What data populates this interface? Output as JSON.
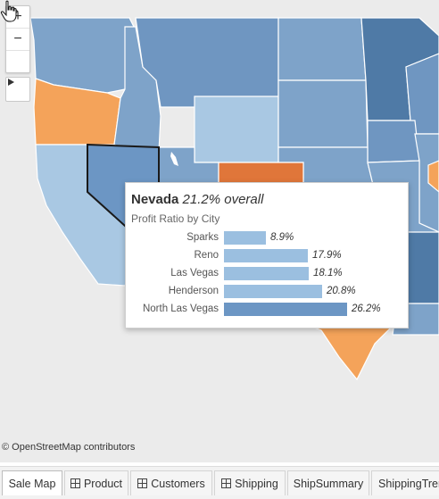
{
  "map": {
    "controls": {
      "zoom_in": "+",
      "zoom_out": "−",
      "pin": "pin-icon",
      "expand": "play-triangle-icon"
    },
    "attribution": "© OpenStreetMap contributors"
  },
  "colors": {
    "background": "#ebebeb",
    "profit_low": "#a9c8e3",
    "profit_mid": "#7ea3c9",
    "profit_high": "#4f7aa6",
    "loss_light": "#f4a35a",
    "loss_dark": "#e0763a",
    "tooltip_bar_light": "#9bbfe0",
    "tooltip_bar_dark": "#6c96c4"
  },
  "tooltip": {
    "state": "Nevada",
    "overall": "21.2% overall",
    "subtitle": "Profit Ratio by City",
    "rows": [
      {
        "city": "Sparks",
        "value_text": "8.9%",
        "value": 8.9
      },
      {
        "city": "Reno",
        "value_text": "17.9%",
        "value": 17.9
      },
      {
        "city": "Las Vegas",
        "value_text": "18.1%",
        "value": 18.1
      },
      {
        "city": "Henderson",
        "value_text": "20.8%",
        "value": 20.8
      },
      {
        "city": "North Las Vegas",
        "value_text": "26.2%",
        "value": 26.2
      }
    ]
  },
  "tabs": [
    {
      "label": "Sale Map",
      "icon": null,
      "active": true
    },
    {
      "label": "Product",
      "icon": "grid-icon",
      "active": false
    },
    {
      "label": "Customers",
      "icon": "grid-icon",
      "active": false
    },
    {
      "label": "Shipping",
      "icon": "grid-icon",
      "active": false
    },
    {
      "label": "ShipSummary",
      "icon": null,
      "active": false
    },
    {
      "label": "ShippingTren",
      "icon": null,
      "active": false
    }
  ]
}
